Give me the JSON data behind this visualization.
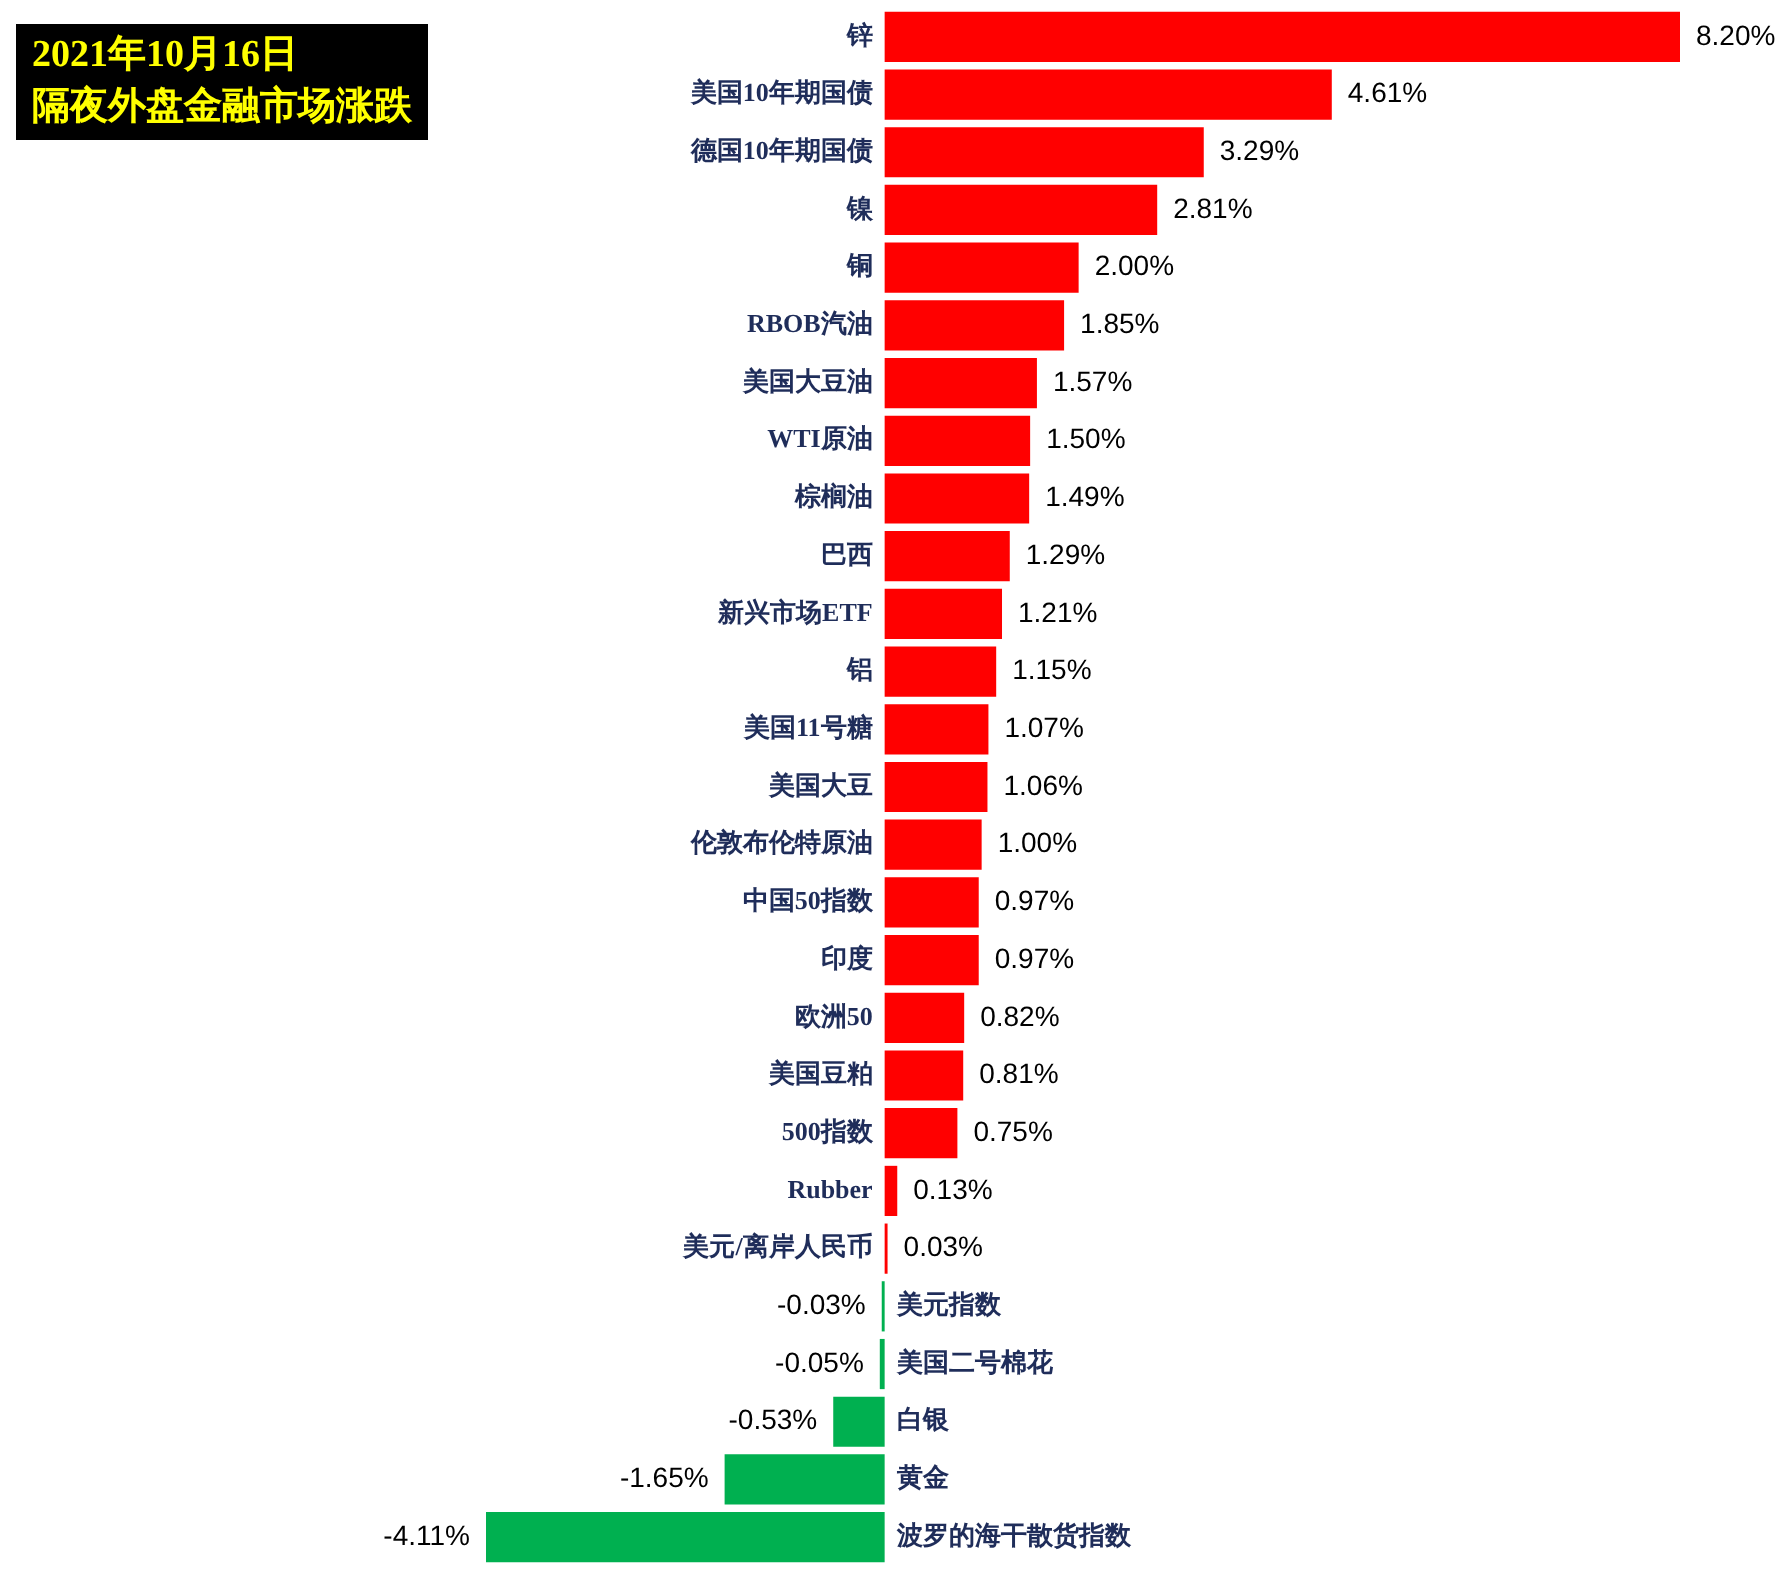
{
  "chart_data": {
    "type": "bar",
    "orientation": "horizontal",
    "title": "2021年10月16日",
    "subtitle": "隔夜外盘金融市场涨跌",
    "categories": [
      "锌",
      "美国10年期国债",
      "德国10年期国债",
      "镍",
      "铜",
      "RBOB汽油",
      "美国大豆油",
      "WTI原油",
      "棕榈油",
      "巴西",
      "新兴市场ETF",
      "铝",
      "美国11号糖",
      "美国大豆",
      "伦敦布伦特原油",
      "中国50指数",
      "印度",
      "欧洲50",
      "美国豆粕",
      "500指数",
      "Rubber",
      "美元/离岸人民币",
      "美元指数",
      "美国二号棉花",
      "白银",
      "黄金",
      "波罗的海干散货指数"
    ],
    "values": [
      8.2,
      4.61,
      3.29,
      2.81,
      2.0,
      1.85,
      1.57,
      1.5,
      1.49,
      1.29,
      1.21,
      1.15,
      1.07,
      1.06,
      1.0,
      0.97,
      0.97,
      0.82,
      0.81,
      0.75,
      0.13,
      0.03,
      -0.03,
      -0.05,
      -0.53,
      -1.65,
      -4.11
    ],
    "value_labels": [
      "8.20%",
      "4.61%",
      "3.29%",
      "2.81%",
      "2.00%",
      "1.85%",
      "1.57%",
      "1.50%",
      "1.49%",
      "1.29%",
      "1.21%",
      "1.15%",
      "1.07%",
      "1.06%",
      "1.00%",
      "0.97%",
      "0.97%",
      "0.82%",
      "0.81%",
      "0.75%",
      "0.13%",
      "0.03%",
      "-0.03%",
      "-0.05%",
      "-0.53%",
      "-1.65%",
      "-4.11%"
    ],
    "colors": [
      "#ff0000",
      "#ff0000",
      "#ff0000",
      "#ff0000",
      "#ff0000",
      "#ff0000",
      "#ff0000",
      "#ff0000",
      "#ff0000",
      "#ff0000",
      "#ff0000",
      "#ff0000",
      "#ff0000",
      "#ff0000",
      "#ff0000",
      "#ff0000",
      "#ff0000",
      "#ff0000",
      "#ff0000",
      "#ff0000",
      "#ff0000",
      "#ff0000",
      "#00b050",
      "#00b050",
      "#00b050",
      "#00b050",
      "#00b050"
    ]
  }
}
